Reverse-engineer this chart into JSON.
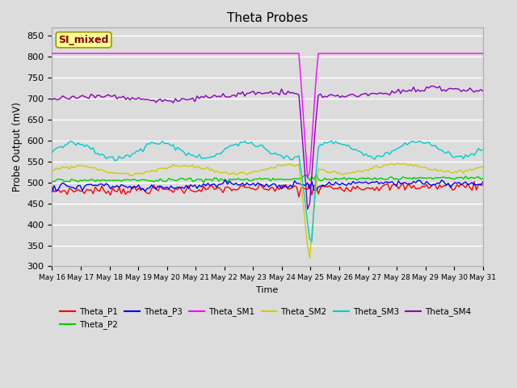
{
  "title": "Theta Probes",
  "xlabel": "Time",
  "ylabel": "Probe Output (mV)",
  "ylim": [
    300,
    870
  ],
  "yticks": [
    300,
    350,
    400,
    450,
    500,
    550,
    600,
    650,
    700,
    750,
    800,
    850
  ],
  "annotation_text": "SI_mixed",
  "annotation_color": "#8B0000",
  "annotation_bg": "#FFFF99",
  "annotation_border": "#999900",
  "bg_color": "#DCDCDC",
  "grid_color": "#FFFFFF",
  "series_order": [
    "Theta_P1",
    "Theta_P2",
    "Theta_P3",
    "Theta_SM1",
    "Theta_SM2",
    "Theta_SM3",
    "Theta_SM4"
  ],
  "colors": {
    "Theta_P1": "#FF0000",
    "Theta_P2": "#00CC00",
    "Theta_P3": "#0000FF",
    "Theta_SM1": "#FF00FF",
    "Theta_SM2": "#CCCC00",
    "Theta_SM3": "#00CCCC",
    "Theta_SM4": "#8800BB"
  },
  "n_days": 15,
  "n_points": 200,
  "drop_day": 8.6,
  "drop_recover_day": 9.25
}
